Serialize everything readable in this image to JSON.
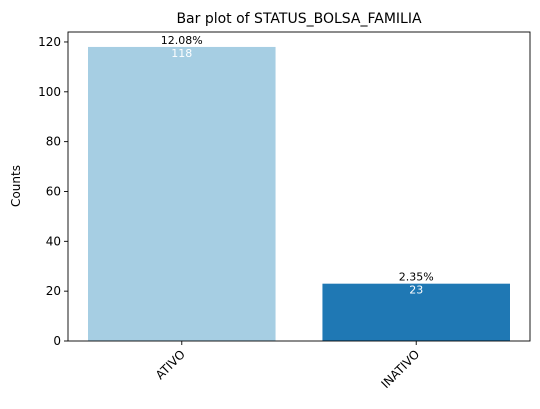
{
  "chart_data": {
    "type": "bar",
    "title": "Bar plot of STATUS_BOLSA_FAMILIA",
    "xlabel": "",
    "ylabel": "Counts",
    "categories": [
      "ATIVO",
      "INATIVO"
    ],
    "values": [
      118,
      23
    ],
    "value_labels": [
      "118",
      "23"
    ],
    "percent_labels": [
      "12.08%",
      "2.35%"
    ],
    "ylim": [
      0,
      124
    ],
    "yticks": [
      0,
      20,
      40,
      60,
      80,
      100,
      120
    ],
    "bar_colors": [
      "#a6cee3",
      "#1f78b4"
    ],
    "grid": false,
    "legend": "none"
  }
}
